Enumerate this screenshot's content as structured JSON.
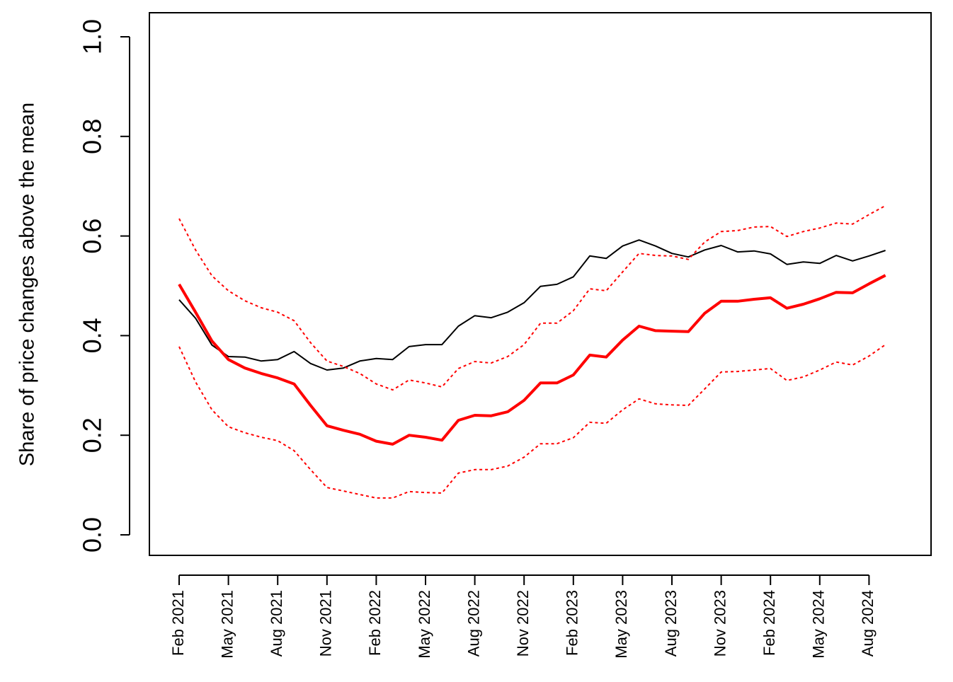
{
  "chart_data": {
    "type": "line",
    "y_label": "Share of price changes above the mean",
    "categories": [
      "Feb 2021",
      null,
      null,
      "May 2021",
      null,
      null,
      "Aug 2021",
      null,
      null,
      "Nov 2021",
      null,
      null,
      "Feb 2022",
      null,
      null,
      "May 2022",
      null,
      null,
      "Aug 2022",
      null,
      null,
      "Nov 2022",
      null,
      null,
      "Feb 2023",
      null,
      null,
      "May 2023",
      null,
      null,
      "Aug 2023",
      null,
      null,
      "Nov 2023",
      null,
      null,
      "Feb 2024",
      null,
      null,
      "May 2024",
      null,
      null,
      "Aug 2024",
      null
    ],
    "ylim": [
      0,
      1
    ],
    "yticks": [
      {
        "value": 0,
        "label": "0.0"
      },
      0.2,
      0.4,
      0.6,
      0.8,
      {
        "value": 1,
        "label": "1.0"
      }
    ],
    "grid": false,
    "series": [
      {
        "color": "#000000",
        "line_style": "solid",
        "line_width": 2,
        "values": [
          0.472,
          0.435,
          0.381,
          0.358,
          0.357,
          0.349,
          0.352,
          0.368,
          0.344,
          0.331,
          0.335,
          0.349,
          0.354,
          0.352,
          0.378,
          0.382,
          0.382,
          0.419,
          0.44,
          0.436,
          0.447,
          0.466,
          0.499,
          0.503,
          0.518,
          0.56,
          0.555,
          0.58,
          0.592,
          0.58,
          0.565,
          0.558,
          0.572,
          0.581,
          0.568,
          0.57,
          0.564,
          0.543,
          0.548,
          0.545,
          0.561,
          0.55,
          0.56,
          0.571
        ]
      },
      {
        "color": "#ff0000",
        "line_style": "solid",
        "line_width": 4,
        "values": [
          0.503,
          0.447,
          0.389,
          0.352,
          0.335,
          0.324,
          0.315,
          0.303,
          0.26,
          0.219,
          0.21,
          0.202,
          0.188,
          0.182,
          0.2,
          0.196,
          0.19,
          0.23,
          0.24,
          0.239,
          0.247,
          0.27,
          0.305,
          0.305,
          0.321,
          0.361,
          0.357,
          0.391,
          0.419,
          0.41,
          0.409,
          0.408,
          0.445,
          0.469,
          0.469,
          0.473,
          0.476,
          0.455,
          0.463,
          0.474,
          0.487,
          0.486,
          0.504,
          0.521
        ]
      },
      {
        "color": "#ff0000",
        "line_style": "dotted",
        "line_width": 2,
        "values": [
          0.635,
          0.572,
          0.52,
          0.49,
          0.47,
          0.456,
          0.447,
          0.43,
          0.386,
          0.349,
          0.338,
          0.324,
          0.303,
          0.291,
          0.311,
          0.305,
          0.297,
          0.334,
          0.348,
          0.345,
          0.358,
          0.382,
          0.425,
          0.425,
          0.45,
          0.494,
          0.49,
          0.528,
          0.565,
          0.561,
          0.56,
          0.553,
          0.588,
          0.609,
          0.611,
          0.618,
          0.619,
          0.599,
          0.609,
          0.616,
          0.626,
          0.624,
          0.643,
          0.661
        ]
      },
      {
        "color": "#ff0000",
        "line_style": "dotted",
        "line_width": 2,
        "values": [
          0.378,
          0.307,
          0.251,
          0.217,
          0.205,
          0.196,
          0.189,
          0.169,
          0.131,
          0.095,
          0.088,
          0.081,
          0.074,
          0.074,
          0.087,
          0.085,
          0.084,
          0.124,
          0.131,
          0.131,
          0.138,
          0.156,
          0.183,
          0.183,
          0.195,
          0.226,
          0.224,
          0.251,
          0.273,
          0.263,
          0.261,
          0.26,
          0.293,
          0.327,
          0.328,
          0.331,
          0.334,
          0.31,
          0.317,
          0.331,
          0.347,
          0.341,
          0.359,
          0.382
        ]
      }
    ]
  }
}
